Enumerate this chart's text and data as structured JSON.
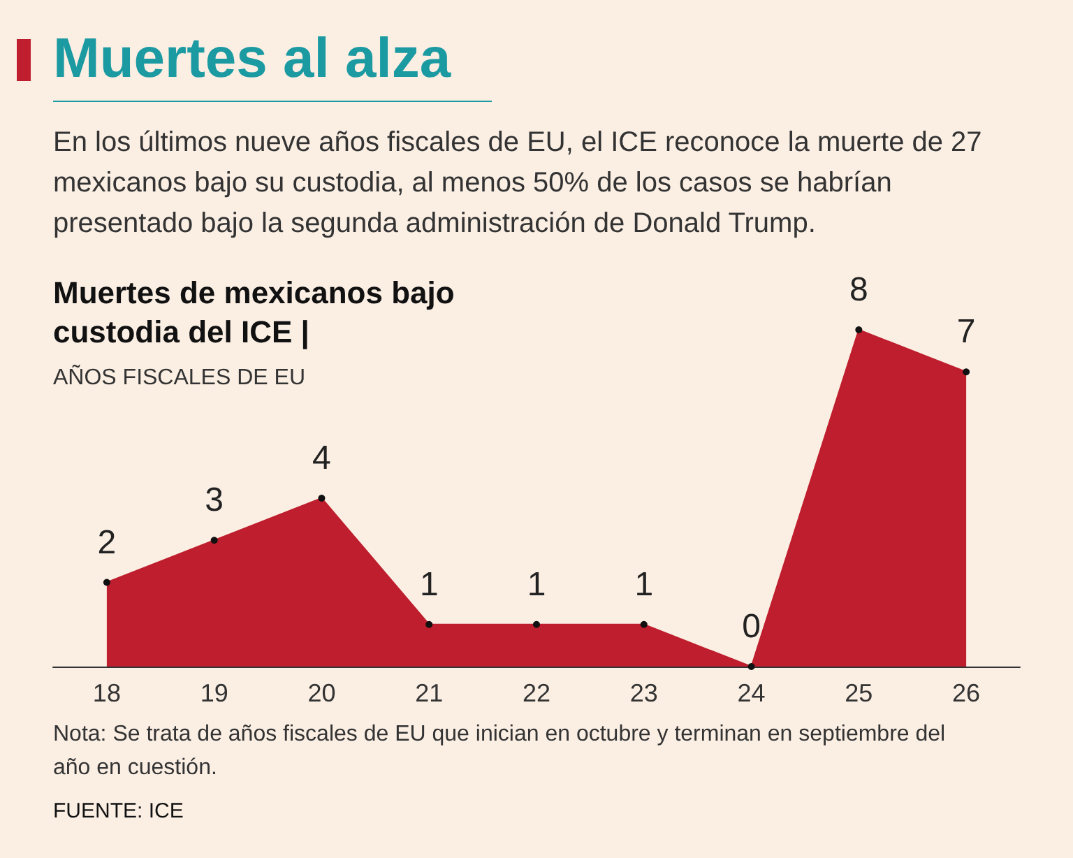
{
  "chart_data": {
    "type": "area",
    "title": "Muertes al alza",
    "subtitle": "En los últimos nueve años fiscales de EU, el ICE reconoce la muerte de 27 mexicanos bajo su custodia, al menos 50% de los casos se habrían presentado bajo la segunda administración de Donald Trump.",
    "annotations": [
      "Muertes de mexicanos bajo custodia del ICE |",
      "AÑOS FISCALES DE EU",
      "Nota: Se trata de años fiscales de EU que inician en octubre y terminan en septiembre del año en cuestión.",
      "FUENTE: ICE"
    ],
    "categories": [
      "18",
      "19",
      "20",
      "21",
      "22",
      "23",
      "24",
      "25",
      "26"
    ],
    "values": [
      2,
      3,
      4,
      1,
      1,
      1,
      0,
      8,
      7
    ],
    "color": "#be1e2d",
    "data_labels": true,
    "marker": "circle",
    "grid": false
  }
}
